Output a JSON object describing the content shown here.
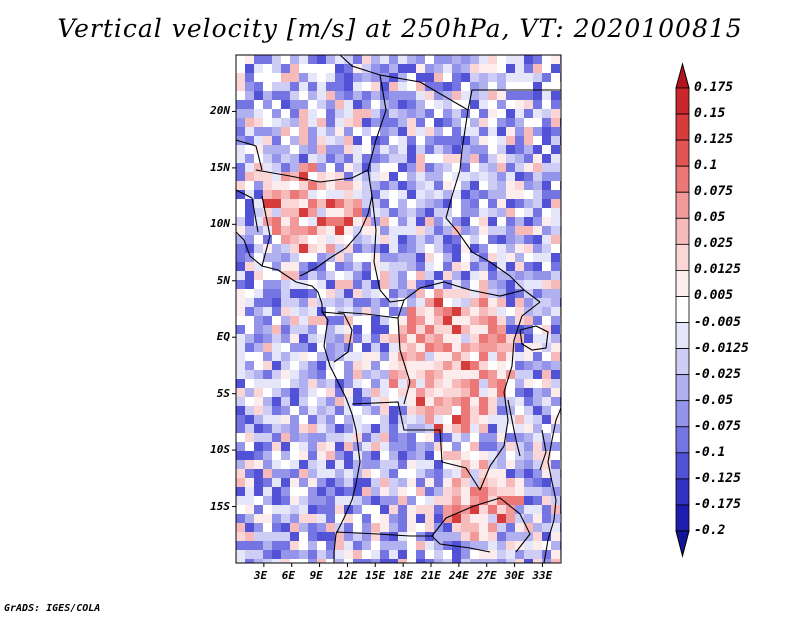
{
  "title": "Vertical velocity [m/s] at 250hPa, VT: 2020100815",
  "credit": "GrADS: IGES/COLA",
  "map": {
    "lon_range": [
      0,
      35
    ],
    "lat_range": [
      -20,
      25
    ],
    "lat_ticks": [
      {
        "value": 20,
        "label": "20N"
      },
      {
        "value": 15,
        "label": "15N"
      },
      {
        "value": 10,
        "label": "10N"
      },
      {
        "value": 5,
        "label": "5N"
      },
      {
        "value": 0,
        "label": "EQ"
      },
      {
        "value": -5,
        "label": "5S"
      },
      {
        "value": -10,
        "label": "10S"
      },
      {
        "value": -15,
        "label": "15S"
      }
    ],
    "lon_ticks": [
      {
        "value": 3,
        "label": "3E"
      },
      {
        "value": 6,
        "label": "6E"
      },
      {
        "value": 9,
        "label": "9E"
      },
      {
        "value": 12,
        "label": "12E"
      },
      {
        "value": 15,
        "label": "15E"
      },
      {
        "value": 18,
        "label": "18E"
      },
      {
        "value": 21,
        "label": "21E"
      },
      {
        "value": 24,
        "label": "24E"
      },
      {
        "value": 27,
        "label": "27E"
      },
      {
        "value": 30,
        "label": "30E"
      },
      {
        "value": 33,
        "label": "33E"
      }
    ]
  },
  "colorbar": {
    "levels": [
      "0.175",
      "0.15",
      "0.125",
      "0.1",
      "0.075",
      "0.05",
      "0.025",
      "0.0125",
      "0.005",
      "-0.005",
      "-0.0125",
      "-0.025",
      "-0.05",
      "-0.075",
      "-0.1",
      "-0.125",
      "-0.175",
      "-0.2"
    ],
    "colors": [
      "#b4141e",
      "#c8282d",
      "#d73c3c",
      "#e35555",
      "#ec7777",
      "#f29a9a",
      "#f7baba",
      "#fbd6d6",
      "#fdecec",
      "#ffffff",
      "#e6e6fb",
      "#cdcdf6",
      "#b1b1f0",
      "#9494ea",
      "#7474e2",
      "#5252d6",
      "#3232c4",
      "#1e1eae",
      "#14149a"
    ]
  }
}
